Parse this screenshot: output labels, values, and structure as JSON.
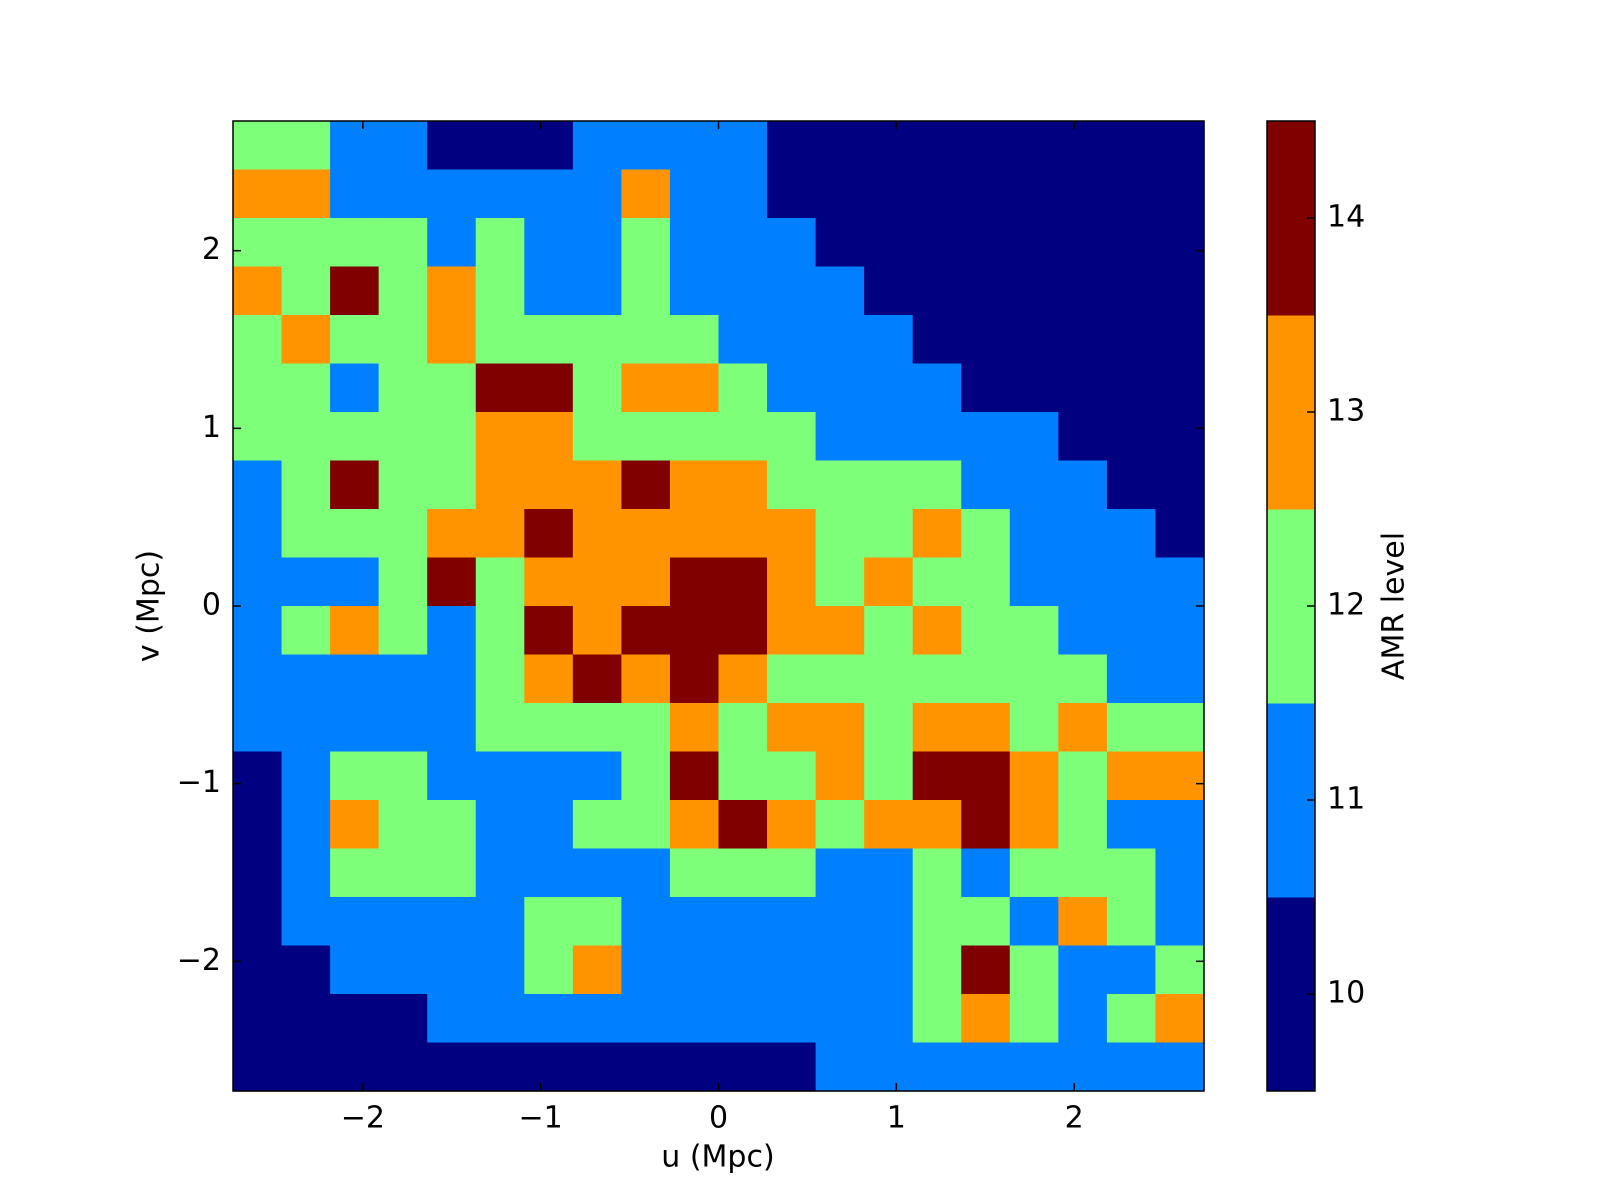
{
  "chart_data": {
    "type": "heatmap",
    "xlabel": "u (Mpc)",
    "ylabel": "v (Mpc)",
    "xlim": [
      -2.73,
      2.73
    ],
    "ylim": [
      -2.73,
      2.73
    ],
    "xticks": [
      {
        "value": -2,
        "label": "−2"
      },
      {
        "value": -1,
        "label": "−1"
      },
      0,
      1,
      2
    ],
    "yticks": [
      {
        "value": -2,
        "label": "−2"
      },
      {
        "value": -1,
        "label": "−1"
      },
      0,
      1,
      2
    ],
    "z": [
      [
        12,
        12,
        11,
        11,
        10,
        10,
        10,
        11,
        11,
        11,
        11,
        10,
        10,
        10,
        10,
        10,
        10,
        10,
        10,
        10
      ],
      [
        13,
        13,
        11,
        11,
        11,
        11,
        11,
        11,
        13,
        11,
        11,
        10,
        10,
        10,
        10,
        10,
        10,
        10,
        10,
        10
      ],
      [
        12,
        12,
        12,
        12,
        11,
        12,
        11,
        11,
        12,
        11,
        11,
        11,
        10,
        10,
        10,
        10,
        10,
        10,
        10,
        10
      ],
      [
        13,
        12,
        14,
        12,
        13,
        12,
        11,
        11,
        12,
        11,
        11,
        11,
        11,
        10,
        10,
        10,
        10,
        10,
        10,
        10
      ],
      [
        12,
        13,
        12,
        12,
        13,
        12,
        12,
        12,
        12,
        12,
        11,
        11,
        11,
        11,
        10,
        10,
        10,
        10,
        10,
        10
      ],
      [
        12,
        12,
        11,
        12,
        12,
        14,
        14,
        12,
        13,
        13,
        12,
        11,
        11,
        11,
        11,
        10,
        10,
        10,
        10,
        10
      ],
      [
        12,
        12,
        12,
        12,
        12,
        13,
        13,
        12,
        12,
        12,
        12,
        12,
        11,
        11,
        11,
        11,
        11,
        10,
        10,
        10
      ],
      [
        11,
        12,
        14,
        12,
        12,
        13,
        13,
        13,
        14,
        13,
        13,
        12,
        12,
        12,
        12,
        11,
        11,
        11,
        10,
        10
      ],
      [
        11,
        12,
        12,
        12,
        13,
        13,
        14,
        13,
        13,
        13,
        13,
        13,
        12,
        12,
        13,
        12,
        11,
        11,
        11,
        10
      ],
      [
        11,
        11,
        11,
        12,
        14,
        12,
        13,
        13,
        13,
        14,
        14,
        13,
        12,
        13,
        12,
        12,
        11,
        11,
        11,
        11
      ],
      [
        11,
        12,
        13,
        12,
        11,
        12,
        14,
        13,
        14,
        14,
        14,
        13,
        13,
        12,
        13,
        12,
        12,
        11,
        11,
        11
      ],
      [
        11,
        11,
        11,
        11,
        11,
        12,
        13,
        14,
        13,
        14,
        13,
        12,
        12,
        12,
        12,
        12,
        12,
        12,
        11,
        11
      ],
      [
        11,
        11,
        11,
        11,
        11,
        12,
        12,
        12,
        12,
        13,
        12,
        13,
        13,
        12,
        13,
        13,
        12,
        13,
        12,
        12
      ],
      [
        10,
        11,
        12,
        12,
        11,
        11,
        11,
        11,
        12,
        14,
        12,
        12,
        13,
        12,
        14,
        14,
        13,
        12,
        13,
        13
      ],
      [
        10,
        11,
        13,
        12,
        12,
        11,
        11,
        12,
        12,
        13,
        14,
        13,
        12,
        13,
        13,
        14,
        13,
        12,
        11,
        11
      ],
      [
        10,
        11,
        12,
        12,
        12,
        11,
        11,
        11,
        11,
        12,
        12,
        12,
        11,
        11,
        12,
        11,
        12,
        12,
        12,
        11
      ],
      [
        10,
        11,
        11,
        11,
        11,
        11,
        12,
        12,
        11,
        11,
        11,
        11,
        11,
        11,
        12,
        12,
        11,
        13,
        12,
        11
      ],
      [
        10,
        10,
        11,
        11,
        11,
        11,
        12,
        13,
        11,
        11,
        11,
        11,
        11,
        11,
        12,
        14,
        12,
        11,
        11,
        12
      ],
      [
        10,
        10,
        10,
        10,
        11,
        11,
        11,
        11,
        11,
        11,
        11,
        11,
        11,
        11,
        12,
        13,
        12,
        11,
        12,
        13
      ],
      [
        10,
        10,
        10,
        10,
        10,
        10,
        10,
        10,
        10,
        10,
        10,
        10,
        11,
        11,
        11,
        11,
        11,
        11,
        11,
        11
      ]
    ],
    "colorbar": {
      "label": "AMR level",
      "lim": [
        9.5,
        14.5
      ],
      "ticks": [
        10,
        11,
        12,
        13,
        14
      ],
      "colors": [
        "#000080",
        "#0080ff",
        "#7dff7a",
        "#ff9400",
        "#800000"
      ]
    }
  }
}
